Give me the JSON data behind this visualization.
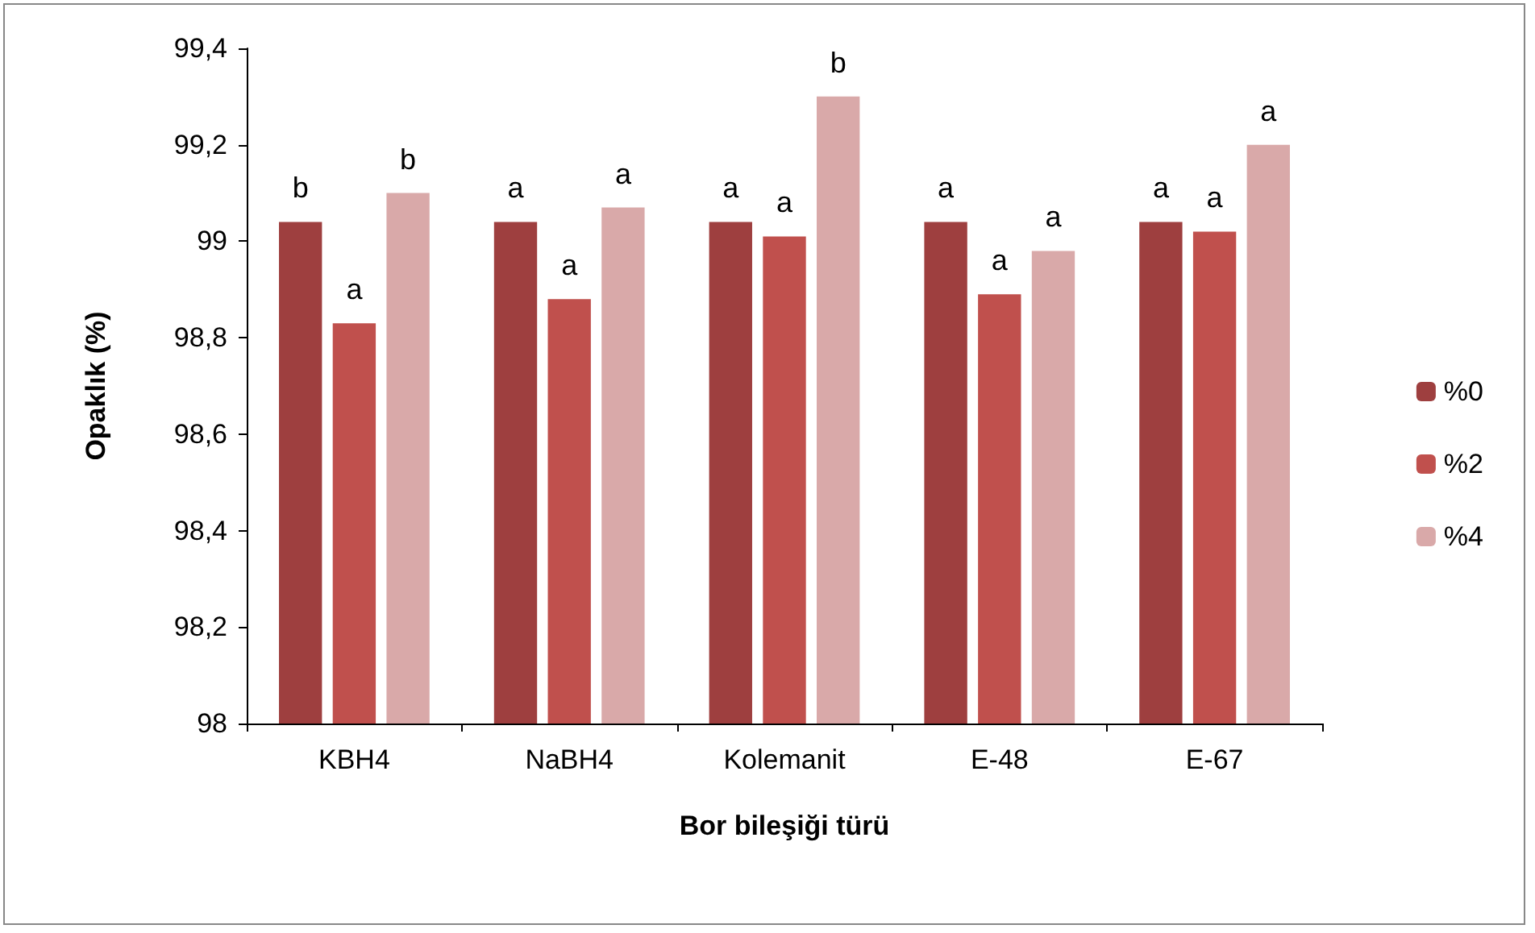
{
  "chart_data": {
    "type": "bar",
    "xlabel": "Bor bileşiği türü",
    "ylabel": "Opaklık (%)",
    "categories": [
      "KBH4",
      "NaBH4",
      "Kolemanit",
      "E-48",
      "E-67"
    ],
    "series": [
      {
        "name": "%0",
        "color": "#9e3f3f",
        "values": [
          99.04,
          99.04,
          99.04,
          99.04,
          99.04
        ],
        "value_labels": [
          "b",
          "a",
          "a",
          "a",
          "a"
        ]
      },
      {
        "name": "%2",
        "color": "#c0504d",
        "values": [
          98.83,
          98.88,
          99.01,
          98.89,
          99.02
        ],
        "value_labels": [
          "a",
          "a",
          "a",
          "a",
          "a"
        ]
      },
      {
        "name": "%4",
        "color": "#d9a9a9",
        "values": [
          99.1,
          99.07,
          99.3,
          98.98,
          99.2
        ],
        "value_labels": [
          "b",
          "a",
          "b",
          "a",
          "a"
        ]
      }
    ],
    "ylim": [
      98,
      99.4
    ],
    "yticks": [
      98,
      {
        "value": 98.2,
        "label": "98,2"
      },
      {
        "value": 98.4,
        "label": "98,4"
      },
      {
        "value": 98.6,
        "label": "98,6"
      },
      {
        "value": 98.8,
        "label": "98,8"
      },
      99,
      {
        "value": 99.2,
        "label": "99,2"
      },
      {
        "value": 99.4,
        "label": "99,4"
      }
    ],
    "grid": false,
    "legend": "right"
  }
}
